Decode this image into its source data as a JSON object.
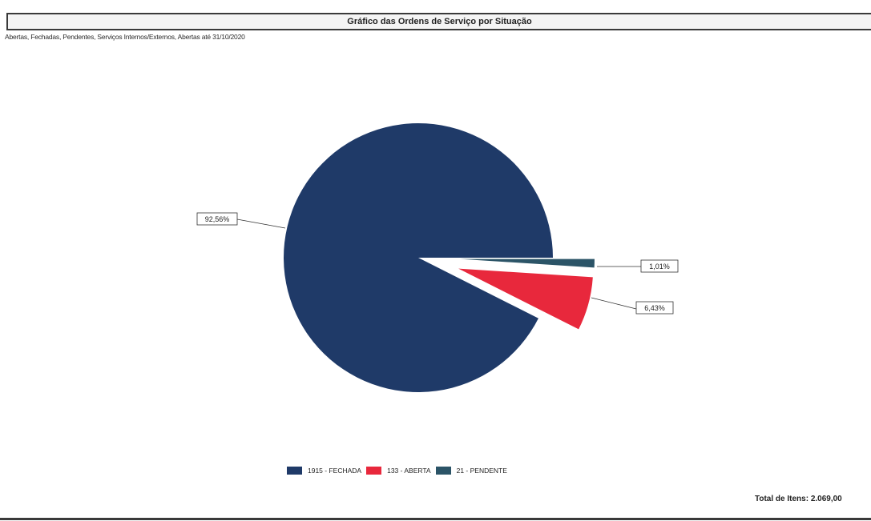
{
  "header": {
    "title": "Gráfico das Ordens de Serviço por Situação",
    "subtitle": "Abertas, Fechadas, Pendentes, Serviços Internos/Externos, Abertas até 31/10/2020"
  },
  "chart_data": {
    "type": "pie",
    "title": "Gráfico das Ordens de Serviço por Situação",
    "subtitle": "Abertas, Fechadas, Pendentes, Serviços Internos/Externos, Abertas até 31/10/2020",
    "slices": [
      {
        "legend": "1915 - FECHADA",
        "count": 1915,
        "percent": 92.56,
        "label": "92,56%",
        "color": "#1f3a68",
        "exploded": false
      },
      {
        "legend": "133 - ABERTA",
        "count": 133,
        "percent": 6.43,
        "label": "6,43%",
        "color": "#e8283c",
        "exploded": true
      },
      {
        "legend": "21 - PENDENTE",
        "count": 21,
        "percent": 1.01,
        "label": "1,01%",
        "color": "#2b5467",
        "exploded": true
      }
    ],
    "legend_position": "bottom"
  },
  "footer": {
    "total_label": "Total de Itens: 2.069,00"
  }
}
